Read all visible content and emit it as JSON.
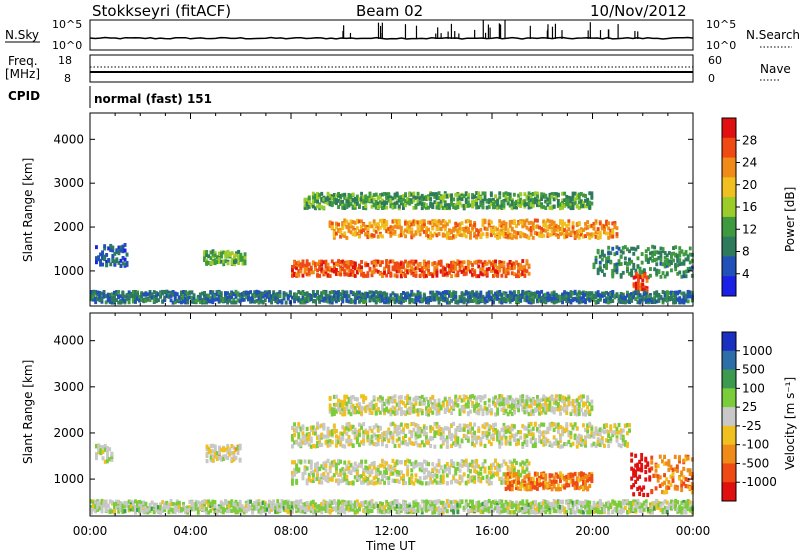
{
  "header": {
    "station": "Stokkseyri (fitACF)",
    "beam": "Beam 02",
    "date": "10/Nov/2012"
  },
  "top_panels": {
    "nsky_label": "N.Sky",
    "nsky_ticks": [
      "10^5",
      "10^0"
    ],
    "nsearch_label": "N.Search",
    "nsearch_ticks": [
      "10^5",
      "10^0"
    ],
    "freq_label": "Freq.",
    "freq_unit": "[MHz]",
    "freq_ticks": [
      "18",
      "8"
    ],
    "nave_label": "Nave",
    "nave_ticks": [
      "60",
      "0"
    ],
    "cpid_label": "CPID",
    "cpid_value": "normal (fast) 151"
  },
  "x_axis": {
    "label": "Time UT",
    "ticks": [
      "00:00",
      "04:00",
      "08:00",
      "12:00",
      "16:00",
      "20:00",
      "00:00"
    ]
  },
  "power_panel": {
    "ylabel": "Slant Range [km]",
    "yticks": [
      "1000",
      "2000",
      "3000",
      "4000"
    ],
    "colorbar_label": "Power [dB]",
    "colorbar_ticks": [
      "4",
      "8",
      "12",
      "16",
      "20",
      "24",
      "28"
    ],
    "colors": [
      "#1a20e6",
      "#2050b8",
      "#2e7a5c",
      "#3f9a3f",
      "#9ccc2a",
      "#f0c020",
      "#f08a18",
      "#f04a14",
      "#e01010"
    ]
  },
  "velocity_panel": {
    "ylabel": "Slant Range [km]",
    "yticks": [
      "1000",
      "2000",
      "3000",
      "4000"
    ],
    "colorbar_label": "Velocity [m s⁻¹]",
    "colorbar_ticks": [
      "1000",
      "500",
      "100",
      "25",
      "-25",
      "-100",
      "-500",
      "-1000"
    ],
    "colors": [
      "#1a30c0",
      "#2e6ea8",
      "#3c9a50",
      "#7acc3a",
      "#c8c8c8",
      "#f0c020",
      "#f08a18",
      "#f04a14",
      "#e01010"
    ]
  },
  "chart_data": [
    {
      "type": "heatmap",
      "title": "Beam 02",
      "xlabel": "Time UT",
      "ylabel": "Slant Range [km]",
      "xlim": [
        "00:00",
        "24:00"
      ],
      "ylim": [
        200,
        4600
      ],
      "colorbar": "Power [dB]",
      "colorbar_range": [
        0,
        32
      ],
      "bands": [
        {
          "t_start": 8.0,
          "t_end": 17.5,
          "range_center": 1050,
          "range_width": 350,
          "value": 26
        },
        {
          "t_start": 9.5,
          "t_end": 21.0,
          "range_center": 1950,
          "range_width": 400,
          "value": 22
        },
        {
          "t_start": 8.5,
          "t_end": 20.0,
          "range_center": 2600,
          "range_width": 350,
          "value": 12
        },
        {
          "t_start": 0.2,
          "t_end": 1.5,
          "range_center": 1350,
          "range_width": 500,
          "value": 6
        },
        {
          "t_start": 4.5,
          "t_end": 6.2,
          "range_center": 1300,
          "range_width": 300,
          "value": 14
        },
        {
          "t_start": 20.0,
          "t_end": 24.0,
          "range_center": 1200,
          "range_width": 700,
          "value": 10
        },
        {
          "t_start": 21.6,
          "t_end": 22.2,
          "range_center": 700,
          "range_width": 500,
          "value": 28
        },
        {
          "t_start": 0.0,
          "t_end": 24.0,
          "range_center": 400,
          "range_width": 250,
          "value": 8
        }
      ]
    },
    {
      "type": "heatmap",
      "title": "",
      "xlabel": "Time UT",
      "ylabel": "Slant Range [km]",
      "xlim": [
        "00:00",
        "24:00"
      ],
      "ylim": [
        200,
        4600
      ],
      "colorbar": "Velocity [m s⁻¹]",
      "colorbar_range": [
        -1000,
        1000
      ],
      "bands": [
        {
          "t_start": 8.0,
          "t_end": 17.5,
          "range_center": 1150,
          "range_width": 500,
          "value": 0
        },
        {
          "t_start": 8.0,
          "t_end": 21.5,
          "range_center": 1950,
          "range_width": 500,
          "value": 0
        },
        {
          "t_start": 9.5,
          "t_end": 20.0,
          "range_center": 2600,
          "range_width": 400,
          "value": 0
        },
        {
          "t_start": 4.6,
          "t_end": 6.0,
          "range_center": 1550,
          "range_width": 350,
          "value": -100
        },
        {
          "t_start": 0.2,
          "t_end": 0.9,
          "range_center": 1550,
          "range_width": 350,
          "value": 100
        },
        {
          "t_start": 16.5,
          "t_end": 20.0,
          "range_center": 950,
          "range_width": 350,
          "value": -500
        },
        {
          "t_start": 21.5,
          "t_end": 22.3,
          "range_center": 1100,
          "range_width": 900,
          "value": -1000
        },
        {
          "t_start": 22.3,
          "t_end": 24.0,
          "range_center": 1100,
          "range_width": 800,
          "value": -500
        },
        {
          "t_start": 0.0,
          "t_end": 24.0,
          "range_center": 400,
          "range_width": 250,
          "value": 100
        }
      ]
    }
  ]
}
